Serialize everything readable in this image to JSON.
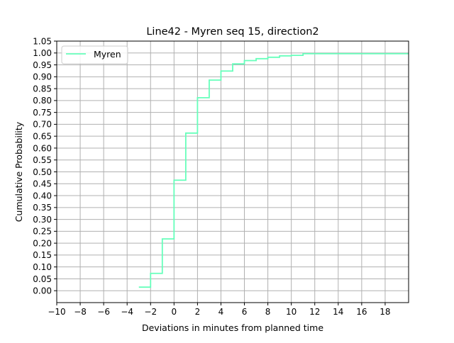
{
  "chart_data": {
    "type": "line",
    "title": "Line42 - Myren seq 15, direction2",
    "xlabel": "Deviations in minutes from planned time",
    "ylabel": "Cumulative Probability",
    "xlim": [
      -10,
      20
    ],
    "ylim": [
      -0.05,
      1.05
    ],
    "x_ticks": [
      -10,
      -8,
      -6,
      -4,
      -2,
      0,
      2,
      4,
      6,
      8,
      10,
      12,
      14,
      16,
      18
    ],
    "x_tick_labels": [
      "−10",
      "−8",
      "−6",
      "−4",
      "−2",
      "0",
      "2",
      "4",
      "6",
      "8",
      "10",
      "12",
      "14",
      "16",
      "18"
    ],
    "y_ticks": [
      0,
      0.05,
      0.1,
      0.15,
      0.2,
      0.25,
      0.3,
      0.35,
      0.4,
      0.45,
      0.5,
      0.55,
      0.6,
      0.65,
      0.7,
      0.75,
      0.8,
      0.85,
      0.9,
      0.95,
      1.0,
      1.05
    ],
    "y_tick_labels": [
      "0.00",
      "0.05",
      "0.10",
      "0.15",
      "0.20",
      "0.25",
      "0.30",
      "0.35",
      "0.40",
      "0.45",
      "0.50",
      "0.55",
      "0.60",
      "0.65",
      "0.70",
      "0.75",
      "0.80",
      "0.85",
      "0.90",
      "0.95",
      "1.00",
      "1.05"
    ],
    "grid": true,
    "legend_position": "top-left",
    "series": [
      {
        "name": "Myren",
        "color": "#66ffbb",
        "step": "post",
        "x": [
          -3,
          -2,
          -1,
          0,
          1,
          2,
          3,
          4,
          5,
          6,
          7,
          8,
          9,
          10,
          11,
          20
        ],
        "y": [
          0.015,
          0.073,
          0.218,
          0.465,
          0.663,
          0.812,
          0.886,
          0.924,
          0.954,
          0.968,
          0.976,
          0.982,
          0.988,
          0.99,
          0.997,
          0.997
        ]
      }
    ]
  }
}
